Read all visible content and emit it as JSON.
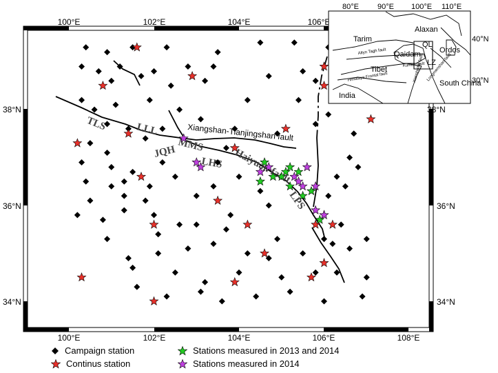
{
  "map": {
    "lon_range": [
      99,
      109
    ],
    "lat_range": [
      33.5,
      39.8
    ],
    "lon_ticks": [
      "100°E",
      "102°E",
      "104°E",
      "106°E",
      "108°E"
    ],
    "lat_ticks": [
      "34°N",
      "36°N",
      "38°N"
    ],
    "fault_labels": [
      "TLS",
      "LLL",
      "MMS",
      "JQH",
      "LHS",
      "Haiyuan fault",
      "LPS"
    ],
    "fault_name": "Xiangshan-Tianjingshan fault",
    "colors": {
      "campaign": "#000000",
      "continuous": "#e8302a",
      "both_years": "#22cc22",
      "year_2014": "#c040e0",
      "fault": "#000000"
    }
  },
  "inset": {
    "lon_ticks": [
      "80°E",
      "90°E",
      "100°E",
      "110°E"
    ],
    "lat_ticks": [
      "40°N",
      "30°N"
    ],
    "regions": [
      "Tarim",
      "Alaxan",
      "Qaidam",
      "QL",
      "LZ",
      "Ordos",
      "Tibet",
      "South China",
      "India"
    ],
    "faults": [
      "Altyn Tagh fault",
      "Kunlun fault",
      "Himalaya Frontal fault",
      "Xianshuihe fault",
      "Longmenshan fault"
    ]
  },
  "legend": {
    "campaign": "Campaign station",
    "continuous": "Continus station",
    "both_years": "Stations measured in 2013 and 2014",
    "year_2014": "Stations measured in 2014"
  },
  "stations": {
    "campaign": [
      [
        100.4,
        39.3
      ],
      [
        100.9,
        39.2
      ],
      [
        101.5,
        39.3
      ],
      [
        102.3,
        39.3
      ],
      [
        103.5,
        39.2
      ],
      [
        104.5,
        39.4
      ],
      [
        105.3,
        39.4
      ],
      [
        106.1,
        39.3
      ],
      [
        106.7,
        39.6
      ],
      [
        100.3,
        38.9
      ],
      [
        100.7,
        38.8
      ],
      [
        101.2,
        38.9
      ],
      [
        102.0,
        38.8
      ],
      [
        102.8,
        38.9
      ],
      [
        103.4,
        38.9
      ],
      [
        105.5,
        38.8
      ],
      [
        106.4,
        38.9
      ],
      [
        101.0,
        38.6
      ],
      [
        101.7,
        38.7
      ],
      [
        102.4,
        38.5
      ],
      [
        103.2,
        38.6
      ],
      [
        104.7,
        38.7
      ],
      [
        105.8,
        38.6
      ],
      [
        100.3,
        38.2
      ],
      [
        100.6,
        38.0
      ],
      [
        101.1,
        38.1
      ],
      [
        101.9,
        38.2
      ],
      [
        102.6,
        38.0
      ],
      [
        104.2,
        38.2
      ],
      [
        105.4,
        38.2
      ],
      [
        106.1,
        37.9
      ],
      [
        100.9,
        37.7
      ],
      [
        101.4,
        37.6
      ],
      [
        102.2,
        37.6
      ],
      [
        103.1,
        37.8
      ],
      [
        103.9,
        37.6
      ],
      [
        104.9,
        37.5
      ],
      [
        105.8,
        37.7
      ],
      [
        100.5,
        37.3
      ],
      [
        100.9,
        37.1
      ],
      [
        101.8,
        37.4
      ],
      [
        103.7,
        37.2
      ],
      [
        106.7,
        37.5
      ],
      [
        100.3,
        36.9
      ],
      [
        101.0,
        36.8
      ],
      [
        101.5,
        36.7
      ],
      [
        102.2,
        36.9
      ],
      [
        103.5,
        36.9
      ],
      [
        106.6,
        37.0
      ],
      [
        100.4,
        36.5
      ],
      [
        101.0,
        36.4
      ],
      [
        101.3,
        36.5
      ],
      [
        101.9,
        36.4
      ],
      [
        102.5,
        36.6
      ],
      [
        104.0,
        36.6
      ],
      [
        106.3,
        36.6
      ],
      [
        106.8,
        36.8
      ],
      [
        100.5,
        36.1
      ],
      [
        101.3,
        36.2
      ],
      [
        101.8,
        36.1
      ],
      [
        103.0,
        36.2
      ],
      [
        103.4,
        36.4
      ],
      [
        104.5,
        36.3
      ],
      [
        106.1,
        36.2
      ],
      [
        106.5,
        36.4
      ],
      [
        100.2,
        35.8
      ],
      [
        100.8,
        35.7
      ],
      [
        101.3,
        35.9
      ],
      [
        102.0,
        35.8
      ],
      [
        103.0,
        35.6
      ],
      [
        103.8,
        35.8
      ],
      [
        104.7,
        36.0
      ],
      [
        100.9,
        35.3
      ],
      [
        102.1,
        35.4
      ],
      [
        102.6,
        35.6
      ],
      [
        103.7,
        35.5
      ],
      [
        104.9,
        35.3
      ],
      [
        106.0,
        35.3
      ],
      [
        106.4,
        35.6
      ],
      [
        107.0,
        35.3
      ],
      [
        101.4,
        34.9
      ],
      [
        102.1,
        35.0
      ],
      [
        102.8,
        35.1
      ],
      [
        103.4,
        35.2
      ],
      [
        104.2,
        35.0
      ],
      [
        104.7,
        34.9
      ],
      [
        105.5,
        35.0
      ],
      [
        106.2,
        35.2
      ],
      [
        106.6,
        35.1
      ],
      [
        101.5,
        34.7
      ],
      [
        102.5,
        34.6
      ],
      [
        103.2,
        34.4
      ],
      [
        104.0,
        34.6
      ],
      [
        105.0,
        34.5
      ],
      [
        105.8,
        34.6
      ],
      [
        106.3,
        34.6
      ],
      [
        107.0,
        34.5
      ],
      [
        101.6,
        34.3
      ],
      [
        102.3,
        34.1
      ],
      [
        103.1,
        34.2
      ],
      [
        103.6,
        34.0
      ],
      [
        104.4,
        34.1
      ],
      [
        105.2,
        34.2
      ],
      [
        106.0,
        34.0
      ],
      [
        106.9,
        34.1
      ]
    ],
    "continuous": [
      [
        101.6,
        39.3
      ],
      [
        100.8,
        38.5
      ],
      [
        102.9,
        38.7
      ],
      [
        106.0,
        38.9
      ],
      [
        106.0,
        38.5
      ],
      [
        107.1,
        37.8
      ],
      [
        105.1,
        37.6
      ],
      [
        100.2,
        37.3
      ],
      [
        101.4,
        37.5
      ],
      [
        103.9,
        37.2
      ],
      [
        101.7,
        36.6
      ],
      [
        103.5,
        36.1
      ],
      [
        102.0,
        35.6
      ],
      [
        104.2,
        35.6
      ],
      [
        105.8,
        35.6
      ],
      [
        106.2,
        35.6
      ],
      [
        104.6,
        35.0
      ],
      [
        106.0,
        34.8
      ],
      [
        105.7,
        34.5
      ],
      [
        100.3,
        34.5
      ],
      [
        103.9,
        34.4
      ],
      [
        102.0,
        34.0
      ]
    ],
    "both_years": [
      [
        104.6,
        36.9
      ],
      [
        104.8,
        36.6
      ],
      [
        104.5,
        36.5
      ],
      [
        105.1,
        36.7
      ],
      [
        105.0,
        36.6
      ],
      [
        105.2,
        36.8
      ],
      [
        105.4,
        36.7
      ],
      [
        105.2,
        36.4
      ],
      [
        105.7,
        36.3
      ],
      [
        105.5,
        36.2
      ],
      [
        106.0,
        35.8
      ],
      [
        105.9,
        35.7
      ]
    ],
    "year_2014": [
      [
        102.7,
        37.4
      ],
      [
        103.0,
        36.9
      ],
      [
        103.1,
        36.8
      ],
      [
        104.5,
        36.7
      ],
      [
        104.7,
        36.8
      ],
      [
        105.3,
        36.6
      ],
      [
        105.4,
        36.5
      ],
      [
        105.6,
        36.8
      ],
      [
        105.5,
        36.4
      ],
      [
        105.8,
        36.4
      ],
      [
        106.0,
        35.8
      ],
      [
        105.8,
        35.9
      ]
    ]
  }
}
